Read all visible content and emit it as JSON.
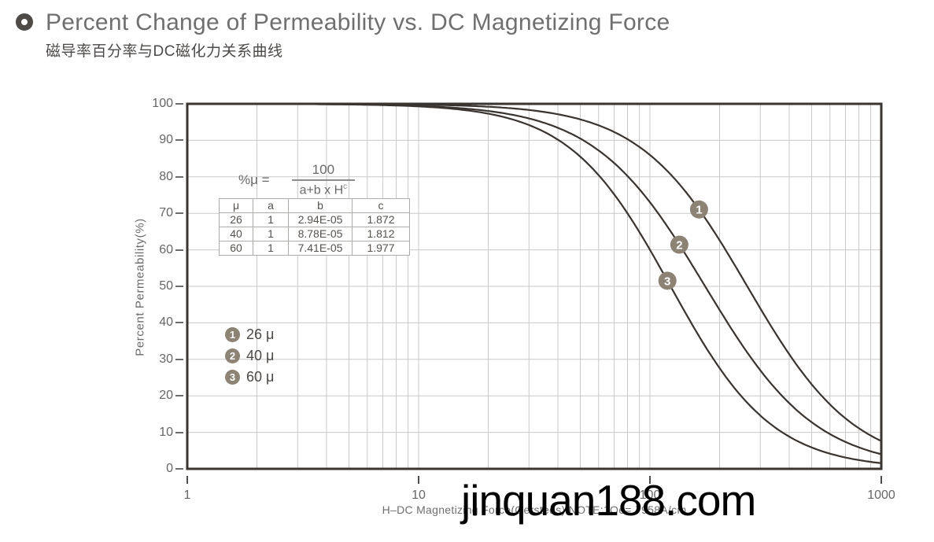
{
  "header": {
    "title": "Percent Change of Permeability vs. DC Magnetizing Force",
    "subtitle_zh": "磁导率百分率与DC磁化力关系曲线"
  },
  "formula": {
    "lhs": "%μ =",
    "numerator": "100",
    "denominator_base": "a+b x H",
    "denominator_exp": "c"
  },
  "param_table": {
    "headers": [
      "μ",
      "a",
      "b",
      "c"
    ],
    "rows": [
      [
        "26",
        "1",
        "2.94E-05",
        "1.872"
      ],
      [
        "40",
        "1",
        "8.78E-05",
        "1.812"
      ],
      [
        "60",
        "1",
        "7.41E-05",
        "1.977"
      ]
    ]
  },
  "legend": {
    "items": [
      {
        "number": "1",
        "label": "26 μ"
      },
      {
        "number": "2",
        "label": "40 μ"
      },
      {
        "number": "3",
        "label": "60 μ"
      }
    ]
  },
  "axes": {
    "y_label": "Percent Permeability(%)",
    "y_tick_labels": [
      "100",
      "90",
      "80",
      "70",
      "60",
      "50",
      "40",
      "30",
      "20",
      "10",
      "0"
    ],
    "x_tick_labels": [
      "1",
      "10",
      "100",
      "1000"
    ],
    "x_label": "H–DC Magnetizing Force(Oersteds) NOTE:1Oe=.7958A/cm"
  },
  "watermark": "jinquan188.com",
  "colors": {
    "curve": "#3a3430",
    "grid": "#c9c9c9",
    "axis_border": "#3a3430",
    "marker_fill": "#8d8375",
    "marker_text": "#ffffff",
    "title_text": "#6f6f6f",
    "tick_text": "#666666",
    "table_border": "#aeaca9",
    "watermark_text": "#000000"
  },
  "chart_data": {
    "type": "line",
    "title": "Percent Change of Permeability vs. DC Magnetizing Force",
    "xlabel": "H-DC Magnetizing Force(Oersteds)",
    "ylabel": "Percent Permeability(%)",
    "x_scale": "log",
    "xlim": [
      1,
      1000
    ],
    "ylim": [
      0,
      100
    ],
    "grid": true,
    "x_ticks": [
      1,
      10,
      100,
      1000
    ],
    "y_ticks": [
      0,
      10,
      20,
      30,
      40,
      50,
      60,
      70,
      80,
      90,
      100
    ],
    "model": "percent_mu = 100 / (a + b * H^c)",
    "sample_H": [
      1,
      2,
      3,
      5,
      7,
      10,
      15,
      20,
      30,
      50,
      70,
      100,
      150,
      200,
      300,
      500,
      700,
      1000
    ],
    "series": [
      {
        "name": "26 μ",
        "marker": "1",
        "a": 1,
        "b": 2.94e-05,
        "c": 1.872,
        "marker_at_H": 163,
        "values": [
          100,
          99.99,
          99.98,
          99.94,
          99.89,
          99.78,
          99.53,
          99.21,
          98.32,
          95.73,
          92.28,
          85.98,
          74.19,
          62.66,
          44.0,
          23.2,
          13.9,
          7.6
        ]
      },
      {
        "name": "40 μ",
        "marker": "2",
        "a": 1,
        "b": 8.78e-05,
        "c": 1.812,
        "marker_at_H": 134,
        "values": [
          99.99,
          99.97,
          99.94,
          99.84,
          99.7,
          99.43,
          98.83,
          98.04,
          96.0,
          90.5,
          83.76,
          73.15,
          56.4,
          43.52,
          26.96,
          12.79,
          7.43,
          4.0
        ]
      },
      {
        "name": "60 μ",
        "marker": "3",
        "a": 1,
        "b": 7.41e-05,
        "c": 1.977,
        "marker_at_H": 119,
        "values": [
          99.99,
          99.97,
          99.93,
          99.82,
          99.65,
          99.3,
          98.46,
          97.3,
          94.19,
          85.53,
          75.19,
          59.99,
          40.18,
          27.63,
          14.58,
          5.84,
          3.06,
          1.56
        ]
      }
    ]
  }
}
